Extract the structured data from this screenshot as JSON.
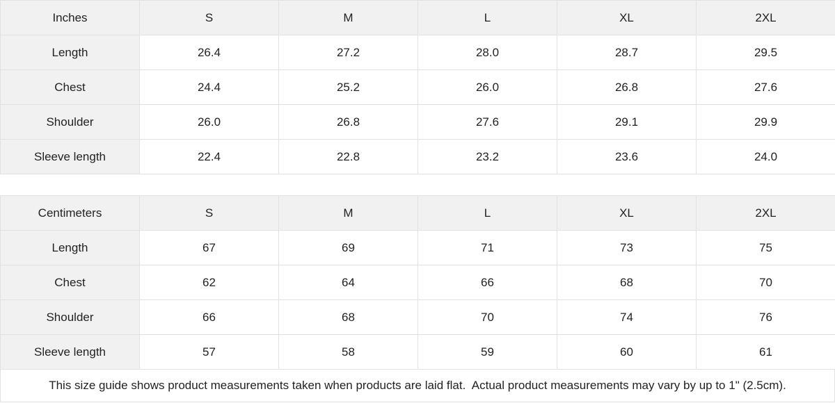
{
  "colors": {
    "header_background": "#f0f1f0",
    "grid_border": "#e1e1e1",
    "text": "#222222",
    "cell_background": "#ffffff"
  },
  "tables": [
    {
      "header": {
        "label": "Inches",
        "sizes": [
          "S",
          "M",
          "L",
          "XL",
          "2XL"
        ]
      },
      "rows": [
        {
          "label": "Length",
          "values": [
            "26.4",
            "27.2",
            "28.0",
            "28.7",
            "29.5"
          ]
        },
        {
          "label": "Chest",
          "values": [
            "24.4",
            "25.2",
            "26.0",
            "26.8",
            "27.6"
          ]
        },
        {
          "label": "Shoulder",
          "values": [
            "26.0",
            "26.8",
            "27.6",
            "29.1",
            "29.9"
          ]
        },
        {
          "label": "Sleeve length",
          "values": [
            "22.4",
            "22.8",
            "23.2",
            "23.6",
            "24.0"
          ]
        }
      ]
    },
    {
      "header": {
        "label": "Centimeters",
        "sizes": [
          "S",
          "M",
          "L",
          "XL",
          "2XL"
        ]
      },
      "rows": [
        {
          "label": "Length",
          "values": [
            "67",
            "69",
            "71",
            "73",
            "75"
          ]
        },
        {
          "label": "Chest",
          "values": [
            "62",
            "64",
            "66",
            "68",
            "70"
          ]
        },
        {
          "label": "Shoulder",
          "values": [
            "66",
            "68",
            "70",
            "74",
            "76"
          ]
        },
        {
          "label": "Sleeve length",
          "values": [
            "57",
            "58",
            "59",
            "60",
            "61"
          ]
        }
      ]
    }
  ],
  "footer": {
    "note": "This size guide shows product measurements taken when products are laid flat.  Actual product measurements may vary by up to 1\" (2.5cm)."
  }
}
